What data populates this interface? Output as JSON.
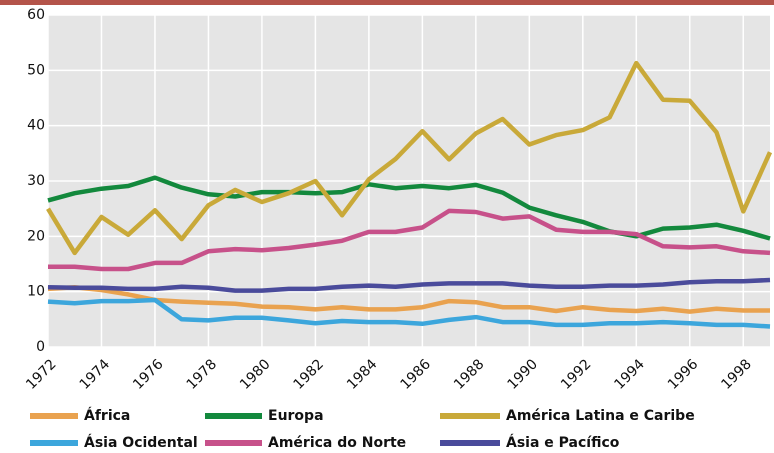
{
  "chart_data": {
    "type": "line",
    "x": [
      1972,
      1973,
      1974,
      1975,
      1976,
      1977,
      1978,
      1979,
      1980,
      1981,
      1982,
      1983,
      1984,
      1985,
      1986,
      1987,
      1988,
      1989,
      1990,
      1991,
      1992,
      1993,
      1994,
      1995,
      1996,
      1997,
      1998,
      1999
    ],
    "xlim": [
      1972,
      1999
    ],
    "xticks": [
      1972,
      1974,
      1976,
      1978,
      1980,
      1982,
      1984,
      1986,
      1988,
      1990,
      1992,
      1994,
      1996,
      1998
    ],
    "ylim": [
      0,
      60
    ],
    "yticks": [
      0,
      10,
      20,
      30,
      40,
      50,
      60
    ],
    "grid": true,
    "series": [
      {
        "name": "África",
        "color": "#e9a24f",
        "values": [
          10.5,
          10.8,
          10.3,
          9.5,
          8.5,
          8.2,
          8.0,
          7.8,
          7.3,
          7.2,
          6.8,
          7.2,
          6.8,
          6.8,
          7.2,
          8.3,
          8.1,
          7.2,
          7.2,
          6.5,
          7.2,
          6.7,
          6.5,
          6.9,
          6.4,
          6.9,
          6.6,
          6.6
        ]
      },
      {
        "name": "Europa",
        "color": "#13893d",
        "values": [
          26.5,
          27.8,
          28.6,
          29.1,
          30.6,
          28.8,
          27.6,
          27.2,
          28.0,
          28.0,
          27.8,
          28.0,
          29.4,
          28.7,
          29.1,
          28.7,
          29.3,
          27.9,
          25.2,
          23.8,
          22.6,
          20.9,
          20.0,
          21.4,
          21.6,
          22.1,
          21.0,
          19.6
        ]
      },
      {
        "name": "América Latina e Caribe",
        "color": "#c9a939",
        "values": [
          25.0,
          17.0,
          23.5,
          20.3,
          24.7,
          19.5,
          25.6,
          28.4,
          26.2,
          27.8,
          30.0,
          23.8,
          30.3,
          34.0,
          39.0,
          33.9,
          38.6,
          41.2,
          36.6,
          38.3,
          39.2,
          41.5,
          51.3,
          44.7,
          44.5,
          38.8,
          24.5,
          35.2
        ]
      },
      {
        "name": "Ásia Ocidental",
        "color": "#3ca6dc",
        "values": [
          8.2,
          7.9,
          8.3,
          8.3,
          8.5,
          5.0,
          4.8,
          5.3,
          5.3,
          4.8,
          4.3,
          4.7,
          4.5,
          4.5,
          4.2,
          4.9,
          5.4,
          4.5,
          4.5,
          4.0,
          4.0,
          4.3,
          4.3,
          4.5,
          4.3,
          4.0,
          4.0,
          3.7
        ]
      },
      {
        "name": "América do Norte",
        "color": "#c7518a",
        "values": [
          14.5,
          14.5,
          14.1,
          14.1,
          15.2,
          15.2,
          17.3,
          17.7,
          17.5,
          17.9,
          18.5,
          19.2,
          20.8,
          20.8,
          21.6,
          24.6,
          24.4,
          23.2,
          23.6,
          21.2,
          20.8,
          20.8,
          20.4,
          18.2,
          18.0,
          18.2,
          17.3,
          17.0
        ]
      },
      {
        "name": "Ásia e Pacífico",
        "color": "#4a4b9b",
        "values": [
          10.8,
          10.7,
          10.7,
          10.5,
          10.5,
          10.9,
          10.7,
          10.2,
          10.2,
          10.5,
          10.5,
          10.9,
          11.1,
          10.9,
          11.3,
          11.5,
          11.5,
          11.5,
          11.1,
          10.9,
          10.9,
          11.1,
          11.1,
          11.3,
          11.7,
          11.9,
          11.9,
          12.1
        ]
      }
    ]
  }
}
